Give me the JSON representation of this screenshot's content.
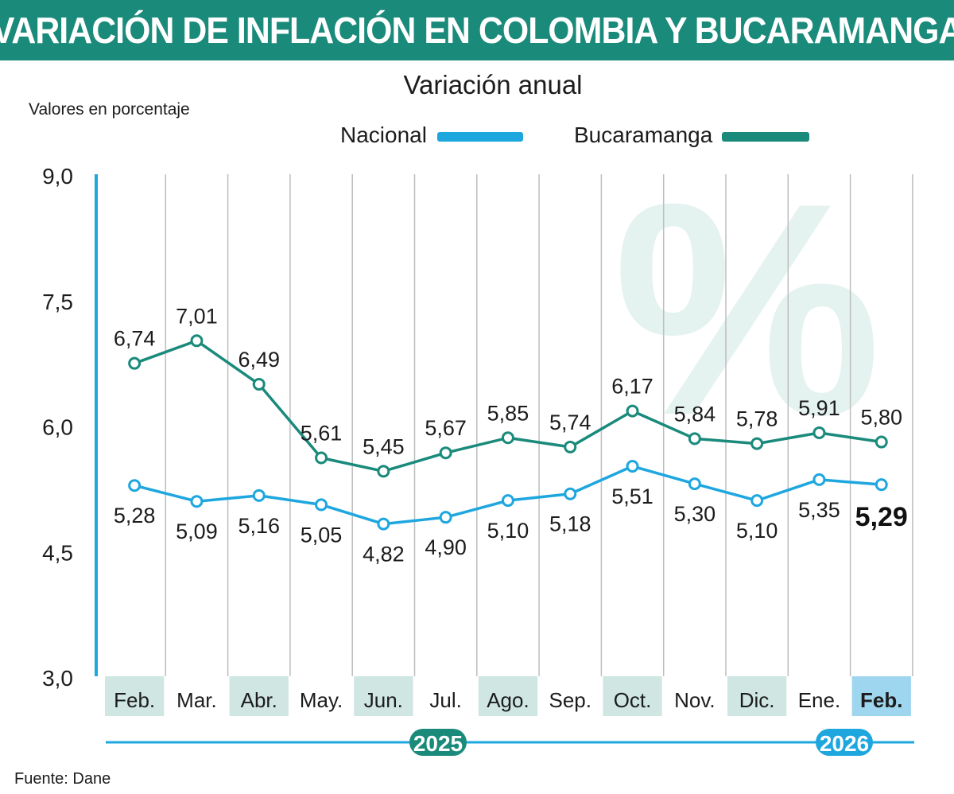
{
  "header": {
    "title": "VARIACIÓN DE INFLACIÓN EN COLOMBIA Y BUCARAMANGA",
    "subtitle": "Variación anual",
    "unit_label": "Valores en porcentaje",
    "source": "Fuente: Dane"
  },
  "watermark": "%",
  "colors": {
    "brand": "#1a8a7b",
    "nacional": "#1ea7df",
    "bucaramanga": "#1a8a7b",
    "band": "#cfe6e3",
    "band_highlight": "#9fd6ef",
    "grid": "#bdbdbd"
  },
  "chart_data": {
    "type": "line",
    "title": "Variación anual",
    "ylabel": "Valores en porcentaje",
    "ylim": [
      3.0,
      9.0
    ],
    "yticks": [
      "9,0",
      "7,5",
      "6,0",
      "4,5",
      "3,0"
    ],
    "ytick_values": [
      9.0,
      7.5,
      6.0,
      4.5,
      3.0
    ],
    "categories": [
      "Feb.",
      "Mar.",
      "Abr.",
      "May.",
      "Jun.",
      "Jul.",
      "Ago.",
      "Sep.",
      "Oct.",
      "Nov.",
      "Dic.",
      "Ene.",
      "Feb."
    ],
    "years": [
      {
        "label": "2025",
        "from_index": 0,
        "to_index": 10
      },
      {
        "label": "2026",
        "from_index": 11,
        "to_index": 12
      }
    ],
    "series": [
      {
        "name": "Nacional",
        "values": [
          5.28,
          5.09,
          5.16,
          5.05,
          4.82,
          4.9,
          5.1,
          5.18,
          5.51,
          5.3,
          5.1,
          5.35,
          5.29
        ],
        "labels": [
          "5,28",
          "5,09",
          "5,16",
          "5,05",
          "4,82",
          "4,90",
          "5,10",
          "5,18",
          "5,51",
          "5,30",
          "5,10",
          "5,35",
          "5,29"
        ]
      },
      {
        "name": "Bucaramanga",
        "values": [
          6.74,
          7.01,
          6.49,
          5.61,
          5.45,
          5.67,
          5.85,
          5.74,
          6.17,
          5.84,
          5.78,
          5.91,
          5.8
        ],
        "labels": [
          "6,74",
          "7,01",
          "6,49",
          "5,61",
          "5,45",
          "5,67",
          "5,85",
          "5,74",
          "6,17",
          "5,84",
          "5,78",
          "5,91",
          "5,80"
        ]
      }
    ],
    "legend": "top",
    "grid": true
  }
}
